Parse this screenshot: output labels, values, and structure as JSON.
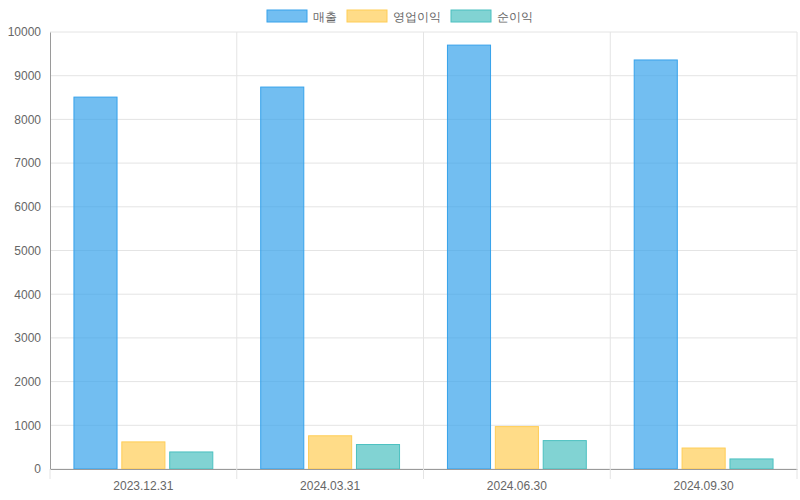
{
  "chart_data": {
    "type": "bar",
    "categories": [
      "2023.12.31",
      "2024.03.31",
      "2024.06.30",
      "2024.09.30"
    ],
    "series": [
      {
        "name": "매출",
        "color": "#36a2eb",
        "values": [
          8510,
          8740,
          9700,
          9360
        ]
      },
      {
        "name": "영업이익",
        "color": "#ffcd56",
        "values": [
          620,
          760,
          970,
          480
        ]
      },
      {
        "name": "순이익",
        "color": "#4bc0c0",
        "values": [
          390,
          560,
          650,
          230
        ]
      }
    ],
    "ylim": [
      0,
      10000
    ],
    "yticks": [
      0,
      1000,
      2000,
      3000,
      4000,
      5000,
      6000,
      7000,
      8000,
      9000,
      10000
    ],
    "grid": true,
    "legend": "top"
  }
}
